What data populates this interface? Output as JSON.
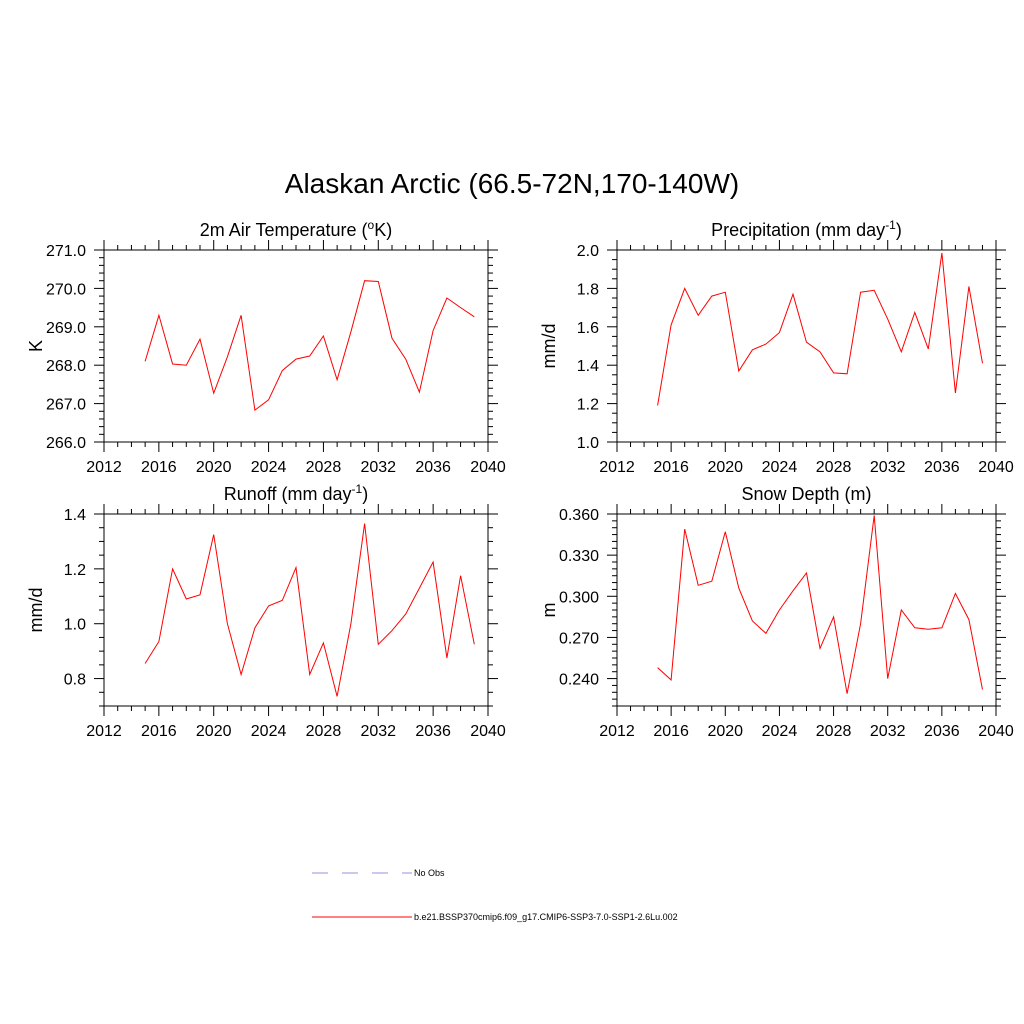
{
  "title": "Alaskan Arctic (66.5-72N,170-140W)",
  "legend": [
    {
      "label": "No Obs",
      "color": "#a9a9e8",
      "style": "dashed"
    },
    {
      "label": "b.e21.BSSP370cmip6.f09_g17.CMIP6-SSP3-7.0-SSP1-2.6Lu.002",
      "color": "#ff0000",
      "style": "solid"
    }
  ],
  "chart_data": [
    {
      "type": "line",
      "title": "2m Air Temperature (°K)",
      "title_parts": {
        "pre": "2m Air Temperature (",
        "sup": "o",
        "post": "K)"
      },
      "xlabel": "",
      "ylabel": "K",
      "xlim": [
        2012,
        2040
      ],
      "ylim": [
        266.0,
        271.0
      ],
      "xticks": [
        2012,
        2016,
        2020,
        2024,
        2028,
        2032,
        2036,
        2040
      ],
      "xtick_labels": [
        "2012",
        "2016",
        "2020",
        "2024",
        "2028",
        "2032",
        "2036",
        "2040"
      ],
      "yticks": [
        266.0,
        267.0,
        268.0,
        269.0,
        270.0,
        271.0
      ],
      "ytick_labels": [
        "266.0",
        "267.0",
        "268.0",
        "269.0",
        "270.0",
        "271.0"
      ],
      "yminor": 0.2,
      "grid": false,
      "series": [
        {
          "color": "#ff0000",
          "x": [
            2015,
            2016,
            2017,
            2018,
            2019,
            2020,
            2021,
            2022,
            2023,
            2024,
            2025,
            2026,
            2027,
            2028,
            2029,
            2030,
            2031,
            2032,
            2033,
            2034,
            2035,
            2036,
            2037,
            2038,
            2039
          ],
          "y": [
            268.1,
            269.3,
            268.03,
            268.0,
            268.68,
            267.27,
            268.22,
            269.3,
            266.83,
            267.1,
            267.86,
            268.16,
            268.24,
            268.76,
            267.62,
            268.87,
            270.2,
            270.18,
            268.7,
            268.16,
            267.3,
            268.9,
            269.75,
            269.5,
            269.26
          ]
        }
      ]
    },
    {
      "type": "line",
      "title": "Precipitation (mm day-1)",
      "title_parts": {
        "pre": "Precipitation (mm day",
        "sup": "-1",
        "post": ")"
      },
      "xlabel": "",
      "ylabel": "mm/d",
      "xlim": [
        2012,
        2040
      ],
      "ylim": [
        1.0,
        2.0
      ],
      "xticks": [
        2012,
        2016,
        2020,
        2024,
        2028,
        2032,
        2036,
        2040
      ],
      "xtick_labels": [
        "2012",
        "2016",
        "2020",
        "2024",
        "2028",
        "2032",
        "2036",
        "2040"
      ],
      "yticks": [
        1.0,
        1.2,
        1.4,
        1.6,
        1.8,
        2.0
      ],
      "ytick_labels": [
        "1.0",
        "1.2",
        "1.4",
        "1.6",
        "1.8",
        "2.0"
      ],
      "yminor": 0.05,
      "grid": false,
      "series": [
        {
          "color": "#ff0000",
          "x": [
            2015,
            2016,
            2017,
            2018,
            2019,
            2020,
            2021,
            2022,
            2023,
            2024,
            2025,
            2026,
            2027,
            2028,
            2029,
            2030,
            2031,
            2032,
            2033,
            2034,
            2035,
            2036,
            2037,
            2038,
            2039
          ],
          "y": [
            1.19,
            1.61,
            1.8,
            1.66,
            1.76,
            1.78,
            1.37,
            1.48,
            1.51,
            1.57,
            1.77,
            1.52,
            1.47,
            1.36,
            1.355,
            1.78,
            1.79,
            1.64,
            1.47,
            1.675,
            1.485,
            1.985,
            1.255,
            1.81,
            1.41
          ]
        }
      ]
    },
    {
      "type": "line",
      "title": "Runoff (mm day-1)",
      "title_parts": {
        "pre": "Runoff (mm day",
        "sup": "-1",
        "post": ")"
      },
      "xlabel": "",
      "ylabel": "mm/d",
      "xlim": [
        2012,
        2040
      ],
      "ylim": [
        0.7,
        1.4
      ],
      "xticks": [
        2012,
        2016,
        2020,
        2024,
        2028,
        2032,
        2036,
        2040
      ],
      "xtick_labels": [
        "2012",
        "2016",
        "2020",
        "2024",
        "2028",
        "2032",
        "2036",
        "2040"
      ],
      "yticks": [
        0.8,
        1.0,
        1.2,
        1.4
      ],
      "ytick_labels": [
        "0.8",
        "1.0",
        "1.2",
        "1.4"
      ],
      "yminor": 0.05,
      "grid": false,
      "series": [
        {
          "color": "#ff0000",
          "x": [
            2015,
            2016,
            2017,
            2018,
            2019,
            2020,
            2021,
            2022,
            2023,
            2024,
            2025,
            2026,
            2027,
            2028,
            2029,
            2030,
            2031,
            2032,
            2033,
            2034,
            2035,
            2036,
            2037,
            2038,
            2039
          ],
          "y": [
            0.855,
            0.935,
            1.2,
            1.09,
            1.105,
            1.325,
            1.0,
            0.815,
            0.985,
            1.065,
            1.085,
            1.205,
            0.815,
            0.93,
            0.735,
            1.0,
            1.365,
            0.925,
            0.975,
            1.035,
            1.13,
            1.225,
            0.875,
            1.175,
            0.925
          ]
        }
      ]
    },
    {
      "type": "line",
      "title": "Snow Depth (m)",
      "title_parts": {
        "pre": "Snow Depth (m)",
        "sup": "",
        "post": ""
      },
      "xlabel": "",
      "ylabel": "m",
      "xlim": [
        2012,
        2040
      ],
      "ylim": [
        0.22,
        0.36
      ],
      "xticks": [
        2012,
        2016,
        2020,
        2024,
        2028,
        2032,
        2036,
        2040
      ],
      "xtick_labels": [
        "2012",
        "2016",
        "2020",
        "2024",
        "2028",
        "2032",
        "2036",
        "2040"
      ],
      "yticks": [
        0.24,
        0.27,
        0.3,
        0.33,
        0.36
      ],
      "ytick_labels": [
        "0.240",
        "0.270",
        "0.300",
        "0.330",
        "0.360"
      ],
      "yminor": 0.005,
      "grid": false,
      "series": [
        {
          "color": "#ff0000",
          "x": [
            2015,
            2016,
            2017,
            2018,
            2019,
            2020,
            2021,
            2022,
            2023,
            2024,
            2025,
            2026,
            2027,
            2028,
            2029,
            2030,
            2031,
            2032,
            2033,
            2034,
            2035,
            2036,
            2037,
            2038,
            2039
          ],
          "y": [
            0.248,
            0.239,
            0.349,
            0.308,
            0.311,
            0.347,
            0.306,
            0.282,
            0.273,
            0.29,
            0.304,
            0.317,
            0.262,
            0.285,
            0.229,
            0.28,
            0.359,
            0.24,
            0.29,
            0.277,
            0.276,
            0.277,
            0.302,
            0.283,
            0.232
          ]
        }
      ]
    }
  ]
}
